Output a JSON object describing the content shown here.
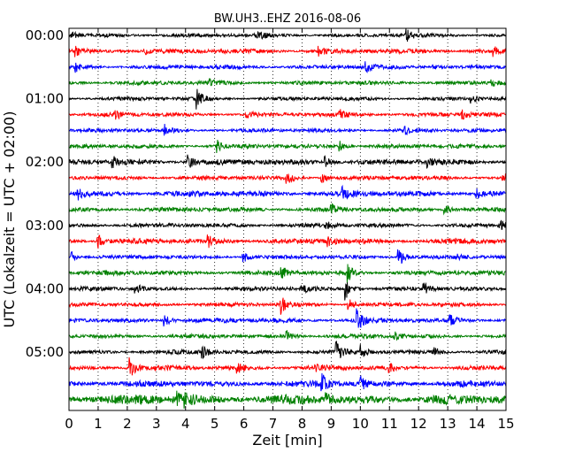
{
  "chart_data": {
    "type": "line",
    "title": "BW.UH3..EHZ 2016-08-06",
    "xlabel": "Zeit  [min]",
    "ylabel": "UTC (Lokalzeit = UTC + 02:00)",
    "xlim": [
      0,
      15
    ],
    "xticks": [
      "0",
      "1",
      "2",
      "3",
      "4",
      "5",
      "6",
      "7",
      "8",
      "9",
      "10",
      "11",
      "12",
      "13",
      "14",
      "15"
    ],
    "yticks": [
      {
        "label": "00:00",
        "row": 0
      },
      {
        "label": "01:00",
        "row": 4
      },
      {
        "label": "02:00",
        "row": 8
      },
      {
        "label": "03:00",
        "row": 12
      },
      {
        "label": "04:00",
        "row": 16
      },
      {
        "label": "05:00",
        "row": 20
      }
    ],
    "row_interval_min": 15,
    "row_count": 24,
    "colors": [
      "#000000",
      "#ff0000",
      "#0000ff",
      "#008000"
    ],
    "grid": "vertical-dotted",
    "rows": [
      {
        "row": 0,
        "amp": 0.2,
        "events": [
          {
            "x": 0.1,
            "a": 0.5
          },
          {
            "x": 6.5,
            "a": 0.5
          },
          {
            "x": 11.6,
            "a": 0.7
          }
        ]
      },
      {
        "row": 1,
        "amp": 0.25,
        "events": [
          {
            "x": 0.2,
            "a": 0.5
          },
          {
            "x": 2.6,
            "a": 0.4
          },
          {
            "x": 8.6,
            "a": 0.5
          },
          {
            "x": 14.6,
            "a": 0.5
          }
        ]
      },
      {
        "row": 2,
        "amp": 0.22,
        "events": [
          {
            "x": 0.2,
            "a": 0.6
          },
          {
            "x": 10.2,
            "a": 0.6
          },
          {
            "x": 12.5,
            "a": 0.4
          }
        ]
      },
      {
        "row": 3,
        "amp": 0.22,
        "events": [
          {
            "x": 4.8,
            "a": 0.5
          },
          {
            "x": 14.5,
            "a": 0.4
          }
        ]
      },
      {
        "row": 4,
        "amp": 0.2,
        "events": [
          {
            "x": 4.4,
            "a": 1.2
          },
          {
            "x": 13.8,
            "a": 0.5
          }
        ]
      },
      {
        "row": 5,
        "amp": 0.22,
        "events": [
          {
            "x": 1.6,
            "a": 0.5
          },
          {
            "x": 6.1,
            "a": 0.6
          },
          {
            "x": 9.3,
            "a": 0.5
          },
          {
            "x": 13.5,
            "a": 0.5
          }
        ]
      },
      {
        "row": 6,
        "amp": 0.2,
        "events": [
          {
            "x": 3.3,
            "a": 0.6
          },
          {
            "x": 11.5,
            "a": 0.6
          }
        ]
      },
      {
        "row": 7,
        "amp": 0.22,
        "events": [
          {
            "x": 5.1,
            "a": 0.7
          },
          {
            "x": 9.3,
            "a": 0.6
          }
        ]
      },
      {
        "row": 8,
        "amp": 0.3,
        "events": [
          {
            "x": 1.5,
            "a": 0.8
          },
          {
            "x": 4.1,
            "a": 0.8
          },
          {
            "x": 8.8,
            "a": 0.6
          },
          {
            "x": 12.3,
            "a": 0.5
          }
        ]
      },
      {
        "row": 9,
        "amp": 0.22,
        "events": [
          {
            "x": 7.5,
            "a": 0.7
          },
          {
            "x": 8.7,
            "a": 0.6
          },
          {
            "x": 14.9,
            "a": 0.6
          }
        ]
      },
      {
        "row": 10,
        "amp": 0.3,
        "events": [
          {
            "x": 0.3,
            "a": 0.9
          },
          {
            "x": 9.4,
            "a": 0.7
          },
          {
            "x": 14.0,
            "a": 0.7
          }
        ]
      },
      {
        "row": 11,
        "amp": 0.25,
        "events": [
          {
            "x": 9.0,
            "a": 0.6
          },
          {
            "x": 12.9,
            "a": 0.7
          }
        ]
      },
      {
        "row": 12,
        "amp": 0.22,
        "events": [
          {
            "x": 8.8,
            "a": 0.6
          },
          {
            "x": 14.8,
            "a": 0.6
          }
        ]
      },
      {
        "row": 13,
        "amp": 0.28,
        "events": [
          {
            "x": 1.0,
            "a": 0.8
          },
          {
            "x": 4.8,
            "a": 0.6
          },
          {
            "x": 8.9,
            "a": 0.6
          }
        ]
      },
      {
        "row": 14,
        "amp": 0.2,
        "events": [
          {
            "x": 0.1,
            "a": 0.6
          },
          {
            "x": 6.0,
            "a": 0.6
          },
          {
            "x": 11.3,
            "a": 1.5
          },
          {
            "x": 13.3,
            "a": 0.5
          }
        ]
      },
      {
        "row": 15,
        "amp": 0.25,
        "events": [
          {
            "x": 7.3,
            "a": 0.8
          },
          {
            "x": 9.6,
            "a": 1.1
          }
        ]
      },
      {
        "row": 16,
        "amp": 0.22,
        "events": [
          {
            "x": 2.3,
            "a": 0.6
          },
          {
            "x": 8.0,
            "a": 0.6
          },
          {
            "x": 9.5,
            "a": 1.6
          },
          {
            "x": 12.2,
            "a": 0.6
          }
        ]
      },
      {
        "row": 17,
        "amp": 0.22,
        "events": [
          {
            "x": 7.3,
            "a": 1.3
          },
          {
            "x": 9.6,
            "a": 0.8
          }
        ]
      },
      {
        "row": 18,
        "amp": 0.25,
        "events": [
          {
            "x": 3.3,
            "a": 0.7
          },
          {
            "x": 9.9,
            "a": 1.3
          },
          {
            "x": 13.1,
            "a": 0.6
          }
        ]
      },
      {
        "row": 19,
        "amp": 0.22,
        "events": [
          {
            "x": 7.5,
            "a": 0.7
          },
          {
            "x": 11.2,
            "a": 0.5
          }
        ]
      },
      {
        "row": 20,
        "amp": 0.22,
        "events": [
          {
            "x": 4.6,
            "a": 0.7
          },
          {
            "x": 9.2,
            "a": 1.1
          },
          {
            "x": 10.0,
            "a": 0.8
          },
          {
            "x": 12.5,
            "a": 0.9
          }
        ]
      },
      {
        "row": 21,
        "amp": 0.25,
        "events": [
          {
            "x": 2.1,
            "a": 1.2
          },
          {
            "x": 5.8,
            "a": 0.5
          },
          {
            "x": 8.4,
            "a": 0.7
          },
          {
            "x": 11.0,
            "a": 0.6
          }
        ]
      },
      {
        "row": 22,
        "amp": 0.32,
        "events": [
          {
            "x": 8.7,
            "a": 1.0
          },
          {
            "x": 10.0,
            "a": 0.8
          }
        ]
      },
      {
        "row": 23,
        "amp": 0.5,
        "events": [
          {
            "x": 3.7,
            "a": 0.9
          },
          {
            "x": 4.0,
            "a": 1.0
          },
          {
            "x": 8.8,
            "a": 0.6
          }
        ]
      }
    ]
  }
}
